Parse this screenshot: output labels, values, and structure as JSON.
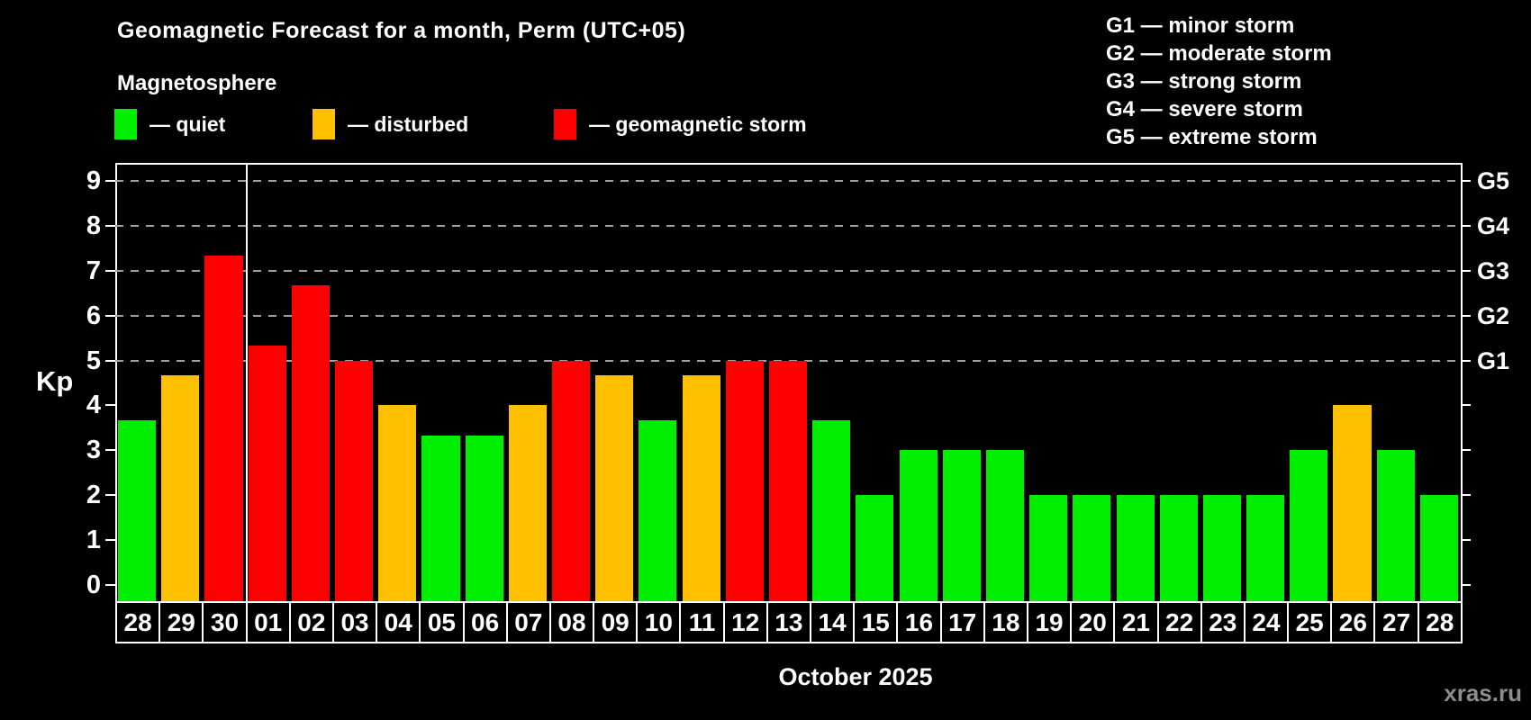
{
  "header": {
    "title": "Geomagnetic Forecast for a month, Perm (UTC+05)",
    "subtitle": "Magnetosphere",
    "legend": [
      {
        "status": "quiet",
        "label": "— quiet",
        "color": "#00ee00"
      },
      {
        "status": "disturbed",
        "label": "— disturbed",
        "color": "#ffc000"
      },
      {
        "status": "storm",
        "label": "— geomagnetic storm",
        "color": "#ff0000"
      }
    ],
    "g_scale_legend": [
      "G1 — minor storm",
      "G2 — moderate storm",
      "G3 — strong storm",
      "G4 — severe storm",
      "G5 — extreme storm"
    ]
  },
  "chart_data": {
    "type": "bar",
    "title": "Geomagnetic Forecast for a month, Perm (UTC+05)",
    "subtitle": "Magnetosphere",
    "ylabel": "Kp",
    "xlabel": "October 2025",
    "ylim": [
      0,
      9.4
    ],
    "yticks": [
      0,
      1,
      2,
      3,
      4,
      5,
      6,
      7,
      8,
      9
    ],
    "gridlines_at_kp": [
      5,
      6,
      7,
      8,
      9
    ],
    "grid": "dashed, only at storm levels G1–G5",
    "legend_position": "top",
    "right_axis": [
      {
        "kp": 5,
        "label": "G1"
      },
      {
        "kp": 6,
        "label": "G2"
      },
      {
        "kp": 7,
        "label": "G3"
      },
      {
        "kp": 8,
        "label": "G4"
      },
      {
        "kp": 9,
        "label": "G5"
      }
    ],
    "month_separator_after_index": 2,
    "categories": [
      "28",
      "29",
      "30",
      "01",
      "02",
      "03",
      "04",
      "05",
      "06",
      "07",
      "08",
      "09",
      "10",
      "11",
      "12",
      "13",
      "14",
      "15",
      "16",
      "17",
      "18",
      "19",
      "20",
      "21",
      "22",
      "23",
      "24",
      "25",
      "26",
      "27",
      "28"
    ],
    "values": [
      3.67,
      4.67,
      7.33,
      5.33,
      6.67,
      5,
      4,
      3.33,
      3.33,
      4,
      5,
      4.67,
      3.67,
      4.67,
      5,
      5,
      3.67,
      2,
      3,
      3,
      3,
      2,
      2,
      2,
      2,
      2,
      2,
      3,
      4,
      3,
      2
    ],
    "statuses": [
      "quiet",
      "disturbed",
      "storm",
      "storm",
      "storm",
      "storm",
      "disturbed",
      "quiet",
      "quiet",
      "disturbed",
      "storm",
      "disturbed",
      "quiet",
      "disturbed",
      "storm",
      "storm",
      "quiet",
      "quiet",
      "quiet",
      "quiet",
      "quiet",
      "quiet",
      "quiet",
      "quiet",
      "quiet",
      "quiet",
      "quiet",
      "quiet",
      "disturbed",
      "quiet",
      "quiet"
    ]
  },
  "footer": {
    "watermark": "xras.ru"
  },
  "colors": {
    "background": "#000000",
    "axis": "#ffffff",
    "grid": "#a0a0a0",
    "quiet": "#00ee00",
    "disturbed": "#ffc000",
    "storm": "#ff0000",
    "watermark": "#8d8d8d"
  }
}
